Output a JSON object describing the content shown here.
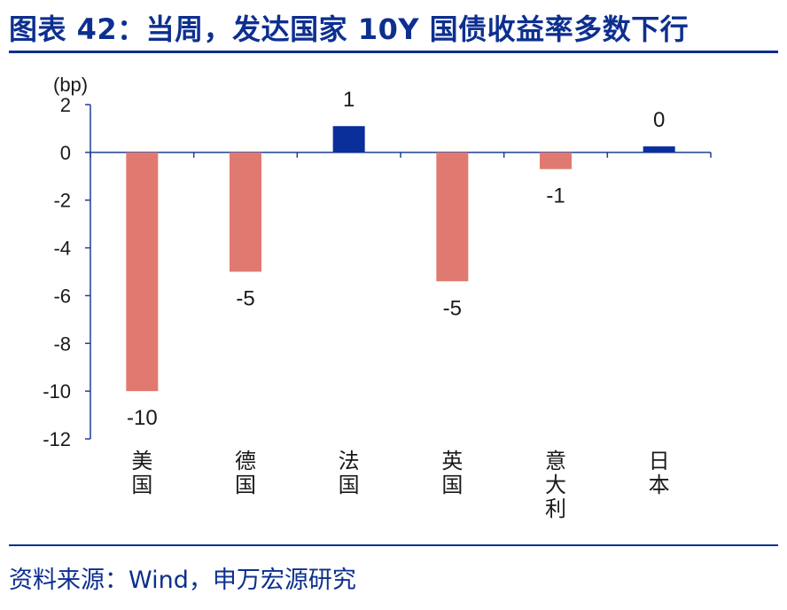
{
  "header": {
    "title": "图表 42：当周，发达国家 10Y 国债收益率多数下行"
  },
  "footer": {
    "source": "资料来源：Wind，申万宏源研究"
  },
  "colors": {
    "title": "#0d2f8f",
    "negative_bar": "#e07a70",
    "positive_bar": "#0a2e9a",
    "axis": "#1c3f94"
  },
  "chart_data": {
    "type": "bar",
    "unit": "(bp)",
    "categories": [
      "美国",
      "德国",
      "法国",
      "英国",
      "意大利",
      "日本"
    ],
    "values": [
      -10,
      -5,
      1.1,
      -5.4,
      -0.7,
      0.25
    ],
    "data_labels": [
      "-10",
      "-5",
      "1",
      "-5",
      "-1",
      "0"
    ],
    "ylim": [
      -12,
      2
    ],
    "yticks": [
      2,
      0,
      -2,
      -4,
      -6,
      -8,
      -10,
      -12
    ],
    "grid": false,
    "legend": "none"
  }
}
